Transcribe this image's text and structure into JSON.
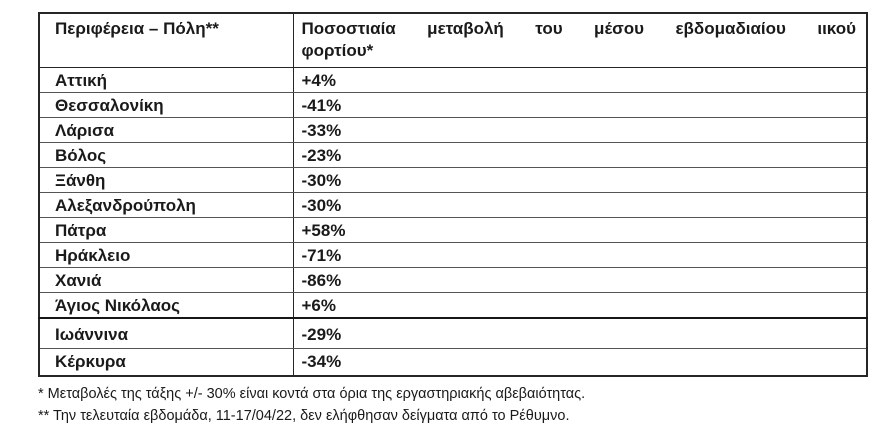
{
  "table": {
    "header": {
      "col1": "Περιφέρεια – Πόλη**",
      "col2_line1": "Ποσοστιαία μεταβολή του μέσου εβδομαδιαίου ιικού",
      "col2_line2": "φορτίου*"
    },
    "rows": [
      {
        "city": "Αττική",
        "change": "+4%"
      },
      {
        "city": "Θεσσαλονίκη",
        "change": "-41%"
      },
      {
        "city": "Λάρισα",
        "change": "-33%"
      },
      {
        "city": "Βόλος",
        "change": "-23%"
      },
      {
        "city": "Ξάνθη",
        "change": "-30%"
      },
      {
        "city": "Αλεξανδρούπολη",
        "change": "-30%"
      },
      {
        "city": "Πάτρα",
        "change": "+58%"
      },
      {
        "city": "Ηράκλειο",
        "change": "-71%"
      },
      {
        "city": "Χανιά",
        "change": "-86%"
      },
      {
        "city": "Άγιος Νικόλαος",
        "change": "+6%"
      },
      {
        "city": "Ιωάννινα",
        "change": "-29%"
      },
      {
        "city": "Κέρκυρα",
        "change": "-34%"
      }
    ]
  },
  "footnotes": [
    "* Μεταβολές της τάξης +/- 30% είναι κοντά στα όρια της εργαστηριακής αβεβαιότητας.",
    "** Την τελευταία εβδομάδα, 11-17/04/22, δεν ελήφθησαν δείγματα από το Ρέθυμνο."
  ]
}
